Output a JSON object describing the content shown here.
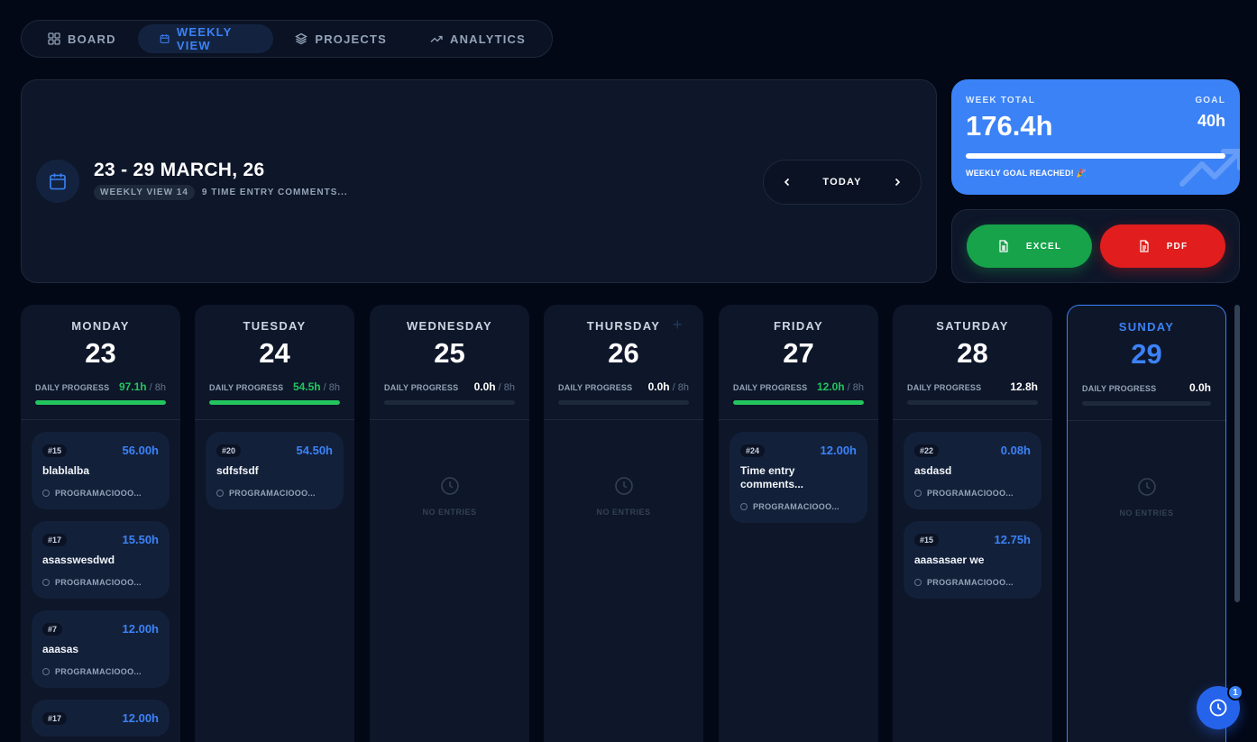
{
  "nav": {
    "items": [
      {
        "label": "BOARD",
        "icon": "grid-icon"
      },
      {
        "label": "WEEKLY VIEW",
        "icon": "calendar-icon",
        "active": true
      },
      {
        "label": "PROJECTS",
        "icon": "layers-icon"
      },
      {
        "label": "ANALYTICS",
        "icon": "trending-up-icon"
      }
    ]
  },
  "header": {
    "title": "23 - 29 MARCH, 26",
    "pill": "WEEKLY VIEW 14",
    "subtitle": "9 TIME ENTRY COMMENTS...",
    "today_label": "TODAY"
  },
  "week_total": {
    "label": "WEEK TOTAL",
    "value": "176.4h",
    "goal_label": "GOAL",
    "goal": "40h",
    "progress_fraction": 1.0,
    "message": "WEEKLY GOAL REACHED! 🎉"
  },
  "export": {
    "excel_label": "EXCEL",
    "pdf_label": "PDF"
  },
  "colors": {
    "accent": "#3b82f6",
    "success": "#22c55e",
    "danger": "#e11d1d",
    "background": "#030817"
  },
  "days": [
    {
      "name": "MONDAY",
      "num": "23",
      "progress_label": "DAILY PROGRESS",
      "hours": "97.1h",
      "goal": "/ 8h",
      "progress_fraction": 1.0,
      "entries": [
        {
          "id": "#15",
          "hours": "56.00h",
          "title": "blablalba",
          "project": "PROGRAMACIOOO..."
        },
        {
          "id": "#17",
          "hours": "15.50h",
          "title": "asasswesdwd",
          "project": "PROGRAMACIOOO..."
        },
        {
          "id": "#7",
          "hours": "12.00h",
          "title": "aaasas",
          "project": "PROGRAMACIOOO..."
        },
        {
          "id": "#17",
          "hours": "12.00h",
          "title": "",
          "project": ""
        }
      ]
    },
    {
      "name": "TUESDAY",
      "num": "24",
      "progress_label": "DAILY PROGRESS",
      "hours": "54.5h",
      "goal": "/ 8h",
      "progress_fraction": 1.0,
      "entries": [
        {
          "id": "#20",
          "hours": "54.50h",
          "title": "sdfsfsdf",
          "project": "PROGRAMACIOOO..."
        }
      ]
    },
    {
      "name": "WEDNESDAY",
      "num": "25",
      "progress_label": "DAILY PROGRESS",
      "hours": "0.0h",
      "goal": "/ 8h",
      "progress_fraction": 0,
      "empty_label": "NO ENTRIES",
      "entries": []
    },
    {
      "name": "THURSDAY",
      "num": "26",
      "progress_label": "DAILY PROGRESS",
      "hours": "0.0h",
      "goal": "/ 8h",
      "progress_fraction": 0,
      "empty_label": "NO ENTRIES",
      "entries": []
    },
    {
      "name": "FRIDAY",
      "num": "27",
      "progress_label": "DAILY PROGRESS",
      "hours": "12.0h",
      "goal": "/ 8h",
      "progress_fraction": 1.0,
      "entries": [
        {
          "id": "#24",
          "hours": "12.00h",
          "title": "Time entry comments...",
          "project": "PROGRAMACIOOO..."
        }
      ]
    },
    {
      "name": "SATURDAY",
      "num": "28",
      "progress_label": "DAILY PROGRESS",
      "hours": "12.8h",
      "goal": "",
      "progress_fraction": 0,
      "entries": [
        {
          "id": "#22",
          "hours": "0.08h",
          "title": "asdasd",
          "project": "PROGRAMACIOOO..."
        },
        {
          "id": "#15",
          "hours": "12.75h",
          "title": "aaasasaer we",
          "project": "PROGRAMACIOOO..."
        }
      ]
    },
    {
      "name": "SUNDAY",
      "num": "29",
      "progress_label": "DAILY PROGRESS",
      "hours": "0.0h",
      "goal": "",
      "progress_fraction": 0,
      "today": true,
      "empty_label": "NO ENTRIES",
      "entries": []
    }
  ],
  "fab": {
    "badge": "1"
  }
}
